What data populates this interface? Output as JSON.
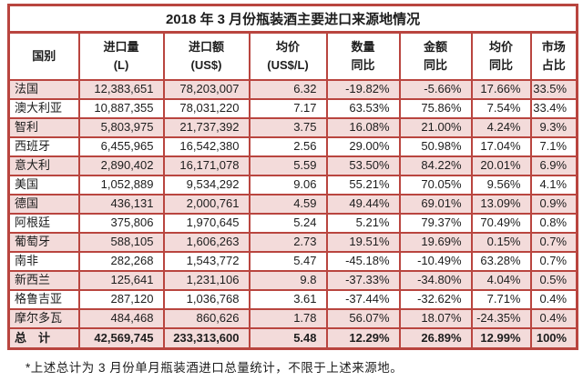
{
  "chart_data": {
    "type": "table",
    "title": "2018 年 3 月份瓶装酒主要进口来源地情况",
    "headers": [
      "国别",
      "进口量\n(L)",
      "进口额\n(US$)",
      "均价\n(US$/L)",
      "数量\n同比",
      "金额\n同比",
      "均价\n同比",
      "市场\n占比"
    ],
    "rows": [
      {
        "country": "法国",
        "values": [
          "12,383,651",
          "78,203,007",
          "6.32",
          "-19.82%",
          "-5.66%",
          "17.66%",
          "33.5%"
        ],
        "shaded": true
      },
      {
        "country": "澳大利亚",
        "values": [
          "10,887,355",
          "78,031,220",
          "7.17",
          "63.53%",
          "75.86%",
          "7.54%",
          "33.4%"
        ],
        "shaded": false
      },
      {
        "country": "智利",
        "values": [
          "5,803,975",
          "21,737,392",
          "3.75",
          "16.08%",
          "21.00%",
          "4.24%",
          "9.3%"
        ],
        "shaded": true
      },
      {
        "country": "西班牙",
        "values": [
          "6,455,965",
          "16,542,380",
          "2.56",
          "29.00%",
          "50.98%",
          "17.04%",
          "7.1%"
        ],
        "shaded": false
      },
      {
        "country": "意大利",
        "values": [
          "2,890,402",
          "16,171,078",
          "5.59",
          "53.50%",
          "84.22%",
          "20.01%",
          "6.9%"
        ],
        "shaded": true
      },
      {
        "country": "美国",
        "values": [
          "1,052,889",
          "9,534,292",
          "9.06",
          "55.21%",
          "70.05%",
          "9.56%",
          "4.1%"
        ],
        "shaded": false
      },
      {
        "country": "德国",
        "values": [
          "436,131",
          "2,000,761",
          "4.59",
          "49.44%",
          "69.01%",
          "13.09%",
          "0.9%"
        ],
        "shaded": true
      },
      {
        "country": "阿根廷",
        "values": [
          "375,806",
          "1,970,645",
          "5.24",
          "5.21%",
          "79.37%",
          "70.49%",
          "0.8%"
        ],
        "shaded": false
      },
      {
        "country": "葡萄牙",
        "values": [
          "588,105",
          "1,606,263",
          "2.73",
          "19.51%",
          "19.69%",
          "0.15%",
          "0.7%"
        ],
        "shaded": true
      },
      {
        "country": "南非",
        "values": [
          "282,268",
          "1,543,772",
          "5.47",
          "-45.18%",
          "-10.49%",
          "63.28%",
          "0.7%"
        ],
        "shaded": false
      },
      {
        "country": "新西兰",
        "values": [
          "125,641",
          "1,231,106",
          "9.8",
          "-37.33%",
          "-34.80%",
          "4.04%",
          "0.5%"
        ],
        "shaded": true
      },
      {
        "country": "格鲁吉亚",
        "values": [
          "287,120",
          "1,036,768",
          "3.61",
          "-37.44%",
          "-32.62%",
          "7.71%",
          "0.4%"
        ],
        "shaded": false
      },
      {
        "country": "摩尔多瓦",
        "values": [
          "484,468",
          "860,626",
          "1.78",
          "56.07%",
          "18.07%",
          "-24.35%",
          "0.4%"
        ],
        "shaded": true
      }
    ],
    "total": {
      "label": "总　计",
      "values": [
        "42,569,745",
        "233,313,600",
        "5.48",
        "12.29%",
        "26.89%",
        "12.99%",
        "100%"
      ]
    },
    "footnote": "*上述总计为 3 月份单月瓶装酒进口总量统计，不限于上述来源地。",
    "colors": {
      "border": "#b9453f",
      "band": "#f3dbda",
      "background": "#ffffff",
      "text": "#1d1d1d"
    }
  }
}
